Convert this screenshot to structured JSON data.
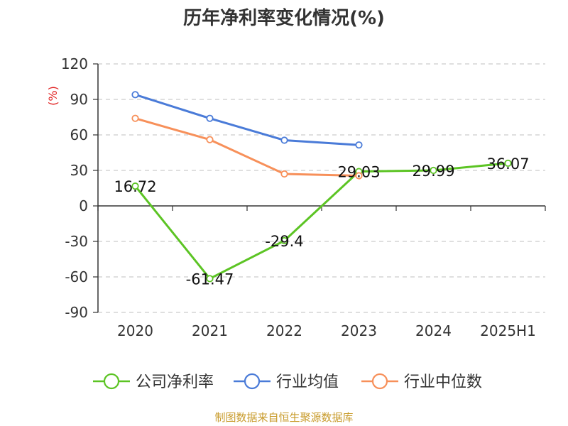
{
  "chart_data": {
    "type": "line",
    "title": "历年净利率变化情况(%)",
    "ylabel": "(%)",
    "xlabel": "",
    "categories": [
      "2020",
      "2021",
      "2022",
      "2023",
      "2024",
      "2025H1"
    ],
    "yticks": [
      120,
      90,
      60,
      30,
      0,
      -30,
      -60,
      -90
    ],
    "ylim": [
      -90,
      120
    ],
    "grid": true,
    "legend_position": "bottom",
    "series": [
      {
        "name": "公司净利率",
        "color": "#5cc424",
        "values": [
          16.72,
          -61.47,
          -29.4,
          29.03,
          29.99,
          36.07
        ],
        "labels": [
          "16.72",
          "-61.47",
          "-29.4",
          "29.03",
          "29.99",
          "36.07"
        ]
      },
      {
        "name": "行业均值",
        "color": "#4a7bd8",
        "values": [
          94,
          74,
          55.5,
          51.5,
          null,
          null
        ]
      },
      {
        "name": "行业中位数",
        "color": "#f7905a",
        "values": [
          74,
          56,
          27,
          25.5,
          null,
          null
        ]
      }
    ]
  },
  "source_text": "制图数据来自恒生聚源数据库",
  "colors": {
    "axis": "#333333",
    "grid": "#cccccc",
    "ylabel": "#e02020",
    "source": "#c89b2b"
  }
}
